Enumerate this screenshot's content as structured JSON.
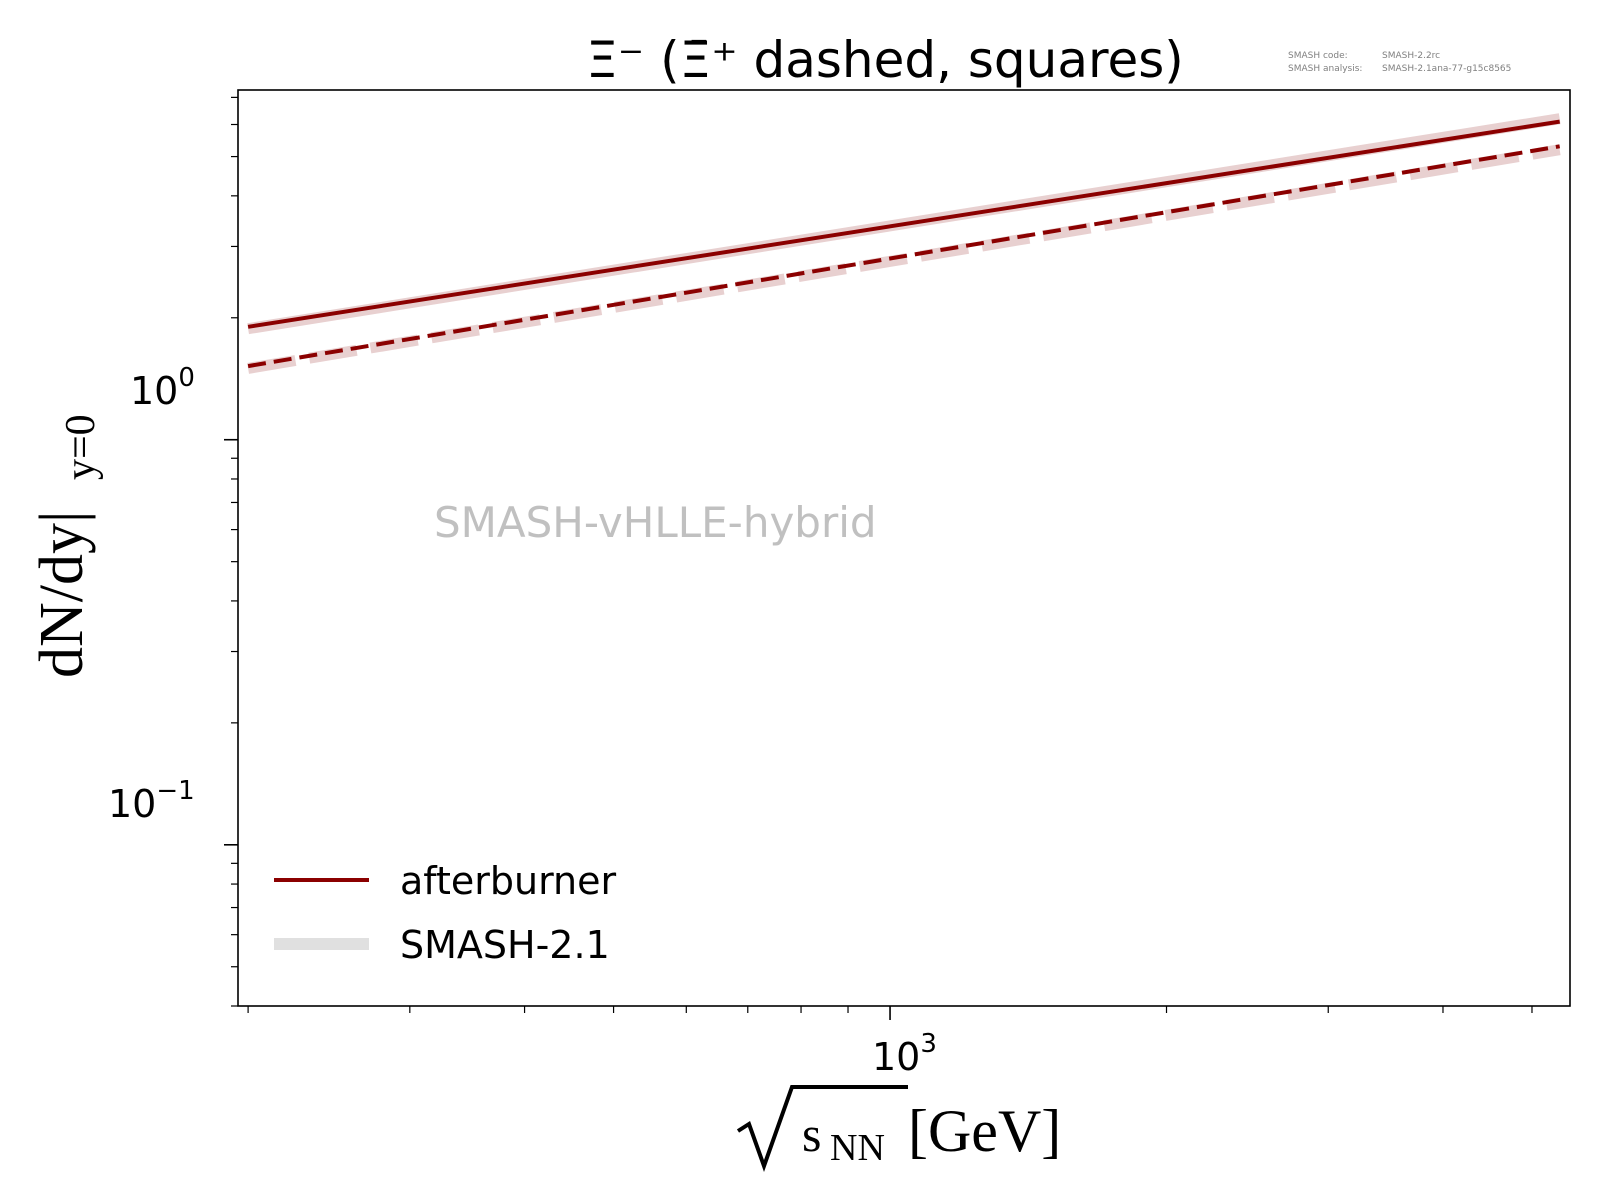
{
  "chart_data": {
    "type": "line",
    "title": "Ξ⁻ (Ξ̄⁺ dashed, squares)",
    "version_info": {
      "code_label": "SMASH code:",
      "code_value": "SMASH-2.2rc",
      "analysis_label": "SMASH analysis:",
      "analysis_value": "SMASH-2.1ana-77-g15c8565"
    },
    "watermark": "SMASH-vHLLE-hybrid",
    "xlabel_root": "√",
    "xlabel_var": "s",
    "xlabel_sub": "NN",
    "xlabel_unit": "[GeV]",
    "ylabel_main": "dN/dy|",
    "ylabel_sub": "y=0",
    "xscale": "log",
    "yscale": "log",
    "xlim": [
      195,
      5500
    ],
    "ylim": [
      0.04,
      7.3
    ],
    "x_ticks": [
      {
        "value": 1000,
        "base": "10",
        "exp": "3"
      }
    ],
    "y_ticks": [
      {
        "value": 1,
        "base": "10",
        "exp": "0"
      },
      {
        "value": 0.1,
        "base": "10",
        "exp": "−1"
      }
    ],
    "grid": false,
    "legend_position": "lower-left",
    "legend": [
      {
        "label": "afterburner",
        "color": "#8b0000",
        "style": "solid"
      },
      {
        "label": "SMASH-2.1",
        "color": "#e0e0e0",
        "style": "solid-thick"
      }
    ],
    "series": [
      {
        "name": "afterburner",
        "particle": "Ξ⁻",
        "color": "#8b0000",
        "dash": "solid",
        "x": [
          200,
          5360
        ],
        "y": [
          1.9,
          6.1
        ]
      },
      {
        "name": "afterburner",
        "particle": "Ξ̄⁺",
        "color": "#8b0000",
        "dash": "dashed",
        "x": [
          200,
          5360
        ],
        "y": [
          1.52,
          5.3
        ]
      },
      {
        "name": "SMASH-2.1",
        "particle": "Ξ⁻",
        "color": "#e8d0d0",
        "dash": "solid",
        "x": [
          200,
          5360
        ],
        "y": [
          1.88,
          6.2
        ]
      },
      {
        "name": "SMASH-2.1",
        "particle": "Ξ̄⁺",
        "color": "#e8d0d0",
        "dash": "dashed",
        "x": [
          200,
          5360
        ],
        "y": [
          1.5,
          5.2
        ]
      }
    ]
  }
}
